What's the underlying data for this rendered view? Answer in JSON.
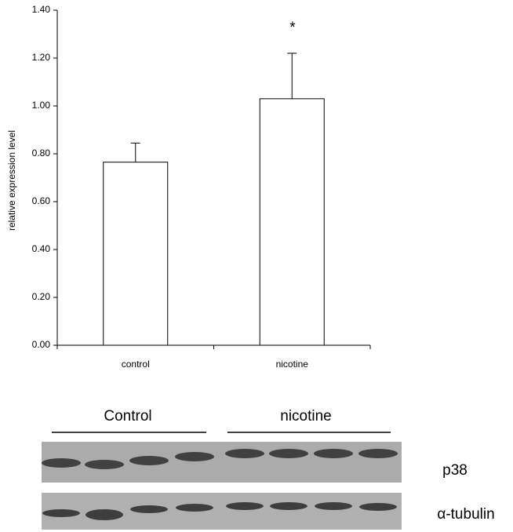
{
  "chart_data": {
    "type": "bar",
    "y_label": "relative expression level",
    "categories": [
      "control",
      "nicotine"
    ],
    "values": [
      0.765,
      1.03
    ],
    "errors": [
      0.08,
      0.19
    ],
    "color": "#ffffff",
    "ylim": [
      0,
      1.4
    ],
    "yticks": [
      {
        "value": 0,
        "label": "0.00"
      },
      {
        "value": 0.2,
        "label": "0.20"
      },
      {
        "value": 0.4,
        "label": "0.40"
      },
      {
        "value": 0.6,
        "label": "0.60"
      },
      {
        "value": 0.8,
        "label": "0.80"
      },
      {
        "value": 1.0,
        "label": "1.00"
      },
      {
        "value": 1.2,
        "label": "1.20"
      },
      {
        "value": 1.4,
        "label": "1.40"
      }
    ],
    "annotations": [
      "*"
    ]
  },
  "blot": {
    "groups": [
      "Control",
      "nicotine"
    ],
    "rows": [
      "p38",
      "α-tubulin"
    ]
  }
}
